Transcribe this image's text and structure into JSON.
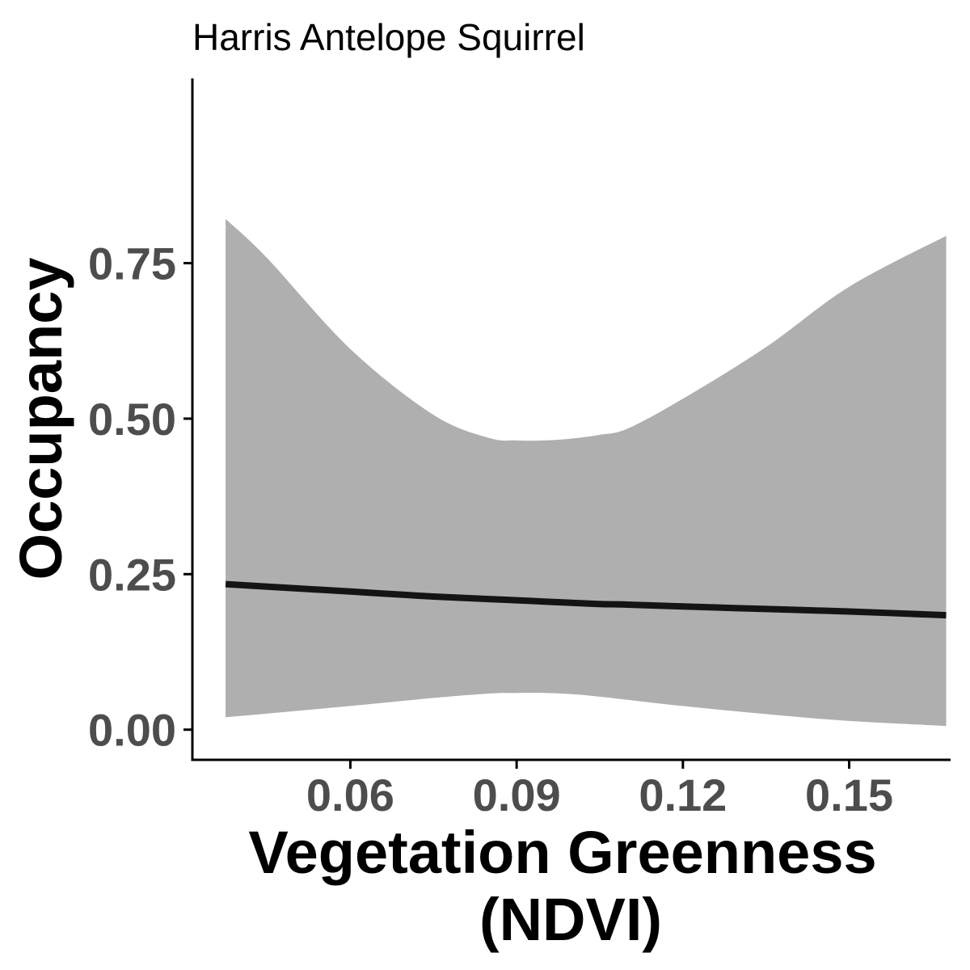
{
  "chart_data": {
    "type": "line",
    "title": "Harris Antelope Squirrel",
    "xlabel": [
      "Vegetation Greenness",
      "(NDVI)"
    ],
    "ylabel": "Occupancy",
    "xlim": [
      0.0315,
      0.1683
    ],
    "ylim": [
      -0.0485,
      1.047
    ],
    "x_ticks": [
      0.06,
      0.09,
      0.12,
      0.15
    ],
    "x_tick_labels": [
      "0.06",
      "0.09",
      "0.12",
      "0.15"
    ],
    "y_ticks": [
      0.0,
      0.25,
      0.5,
      0.75
    ],
    "y_tick_labels": [
      "0.00",
      "0.25",
      "0.50",
      "0.75"
    ],
    "grid": false,
    "colors": {
      "line": "#141414",
      "ribbon": "#afafaf",
      "axis": "#000000",
      "tick_text": "#4d4d4d"
    },
    "series": [
      {
        "x": [
          0.0375,
          0.045,
          0.06,
          0.075,
          0.085,
          0.09,
          0.095,
          0.1,
          0.105,
          0.11,
          0.12,
          0.135,
          0.15,
          0.1675
        ],
        "y": [
          0.234,
          0.23,
          0.222,
          0.214,
          0.21,
          0.208,
          0.206,
          0.204,
          0.202,
          0.201,
          0.198,
          0.194,
          0.19,
          0.184
        ],
        "lower": [
          0.02,
          0.026,
          0.038,
          0.051,
          0.058,
          0.059,
          0.059,
          0.057,
          0.053,
          0.048,
          0.038,
          0.025,
          0.014,
          0.006
        ],
        "upper": [
          0.821,
          0.758,
          0.612,
          0.506,
          0.469,
          0.465,
          0.465,
          0.468,
          0.474,
          0.484,
          0.532,
          0.615,
          0.712,
          0.794
        ]
      }
    ]
  }
}
